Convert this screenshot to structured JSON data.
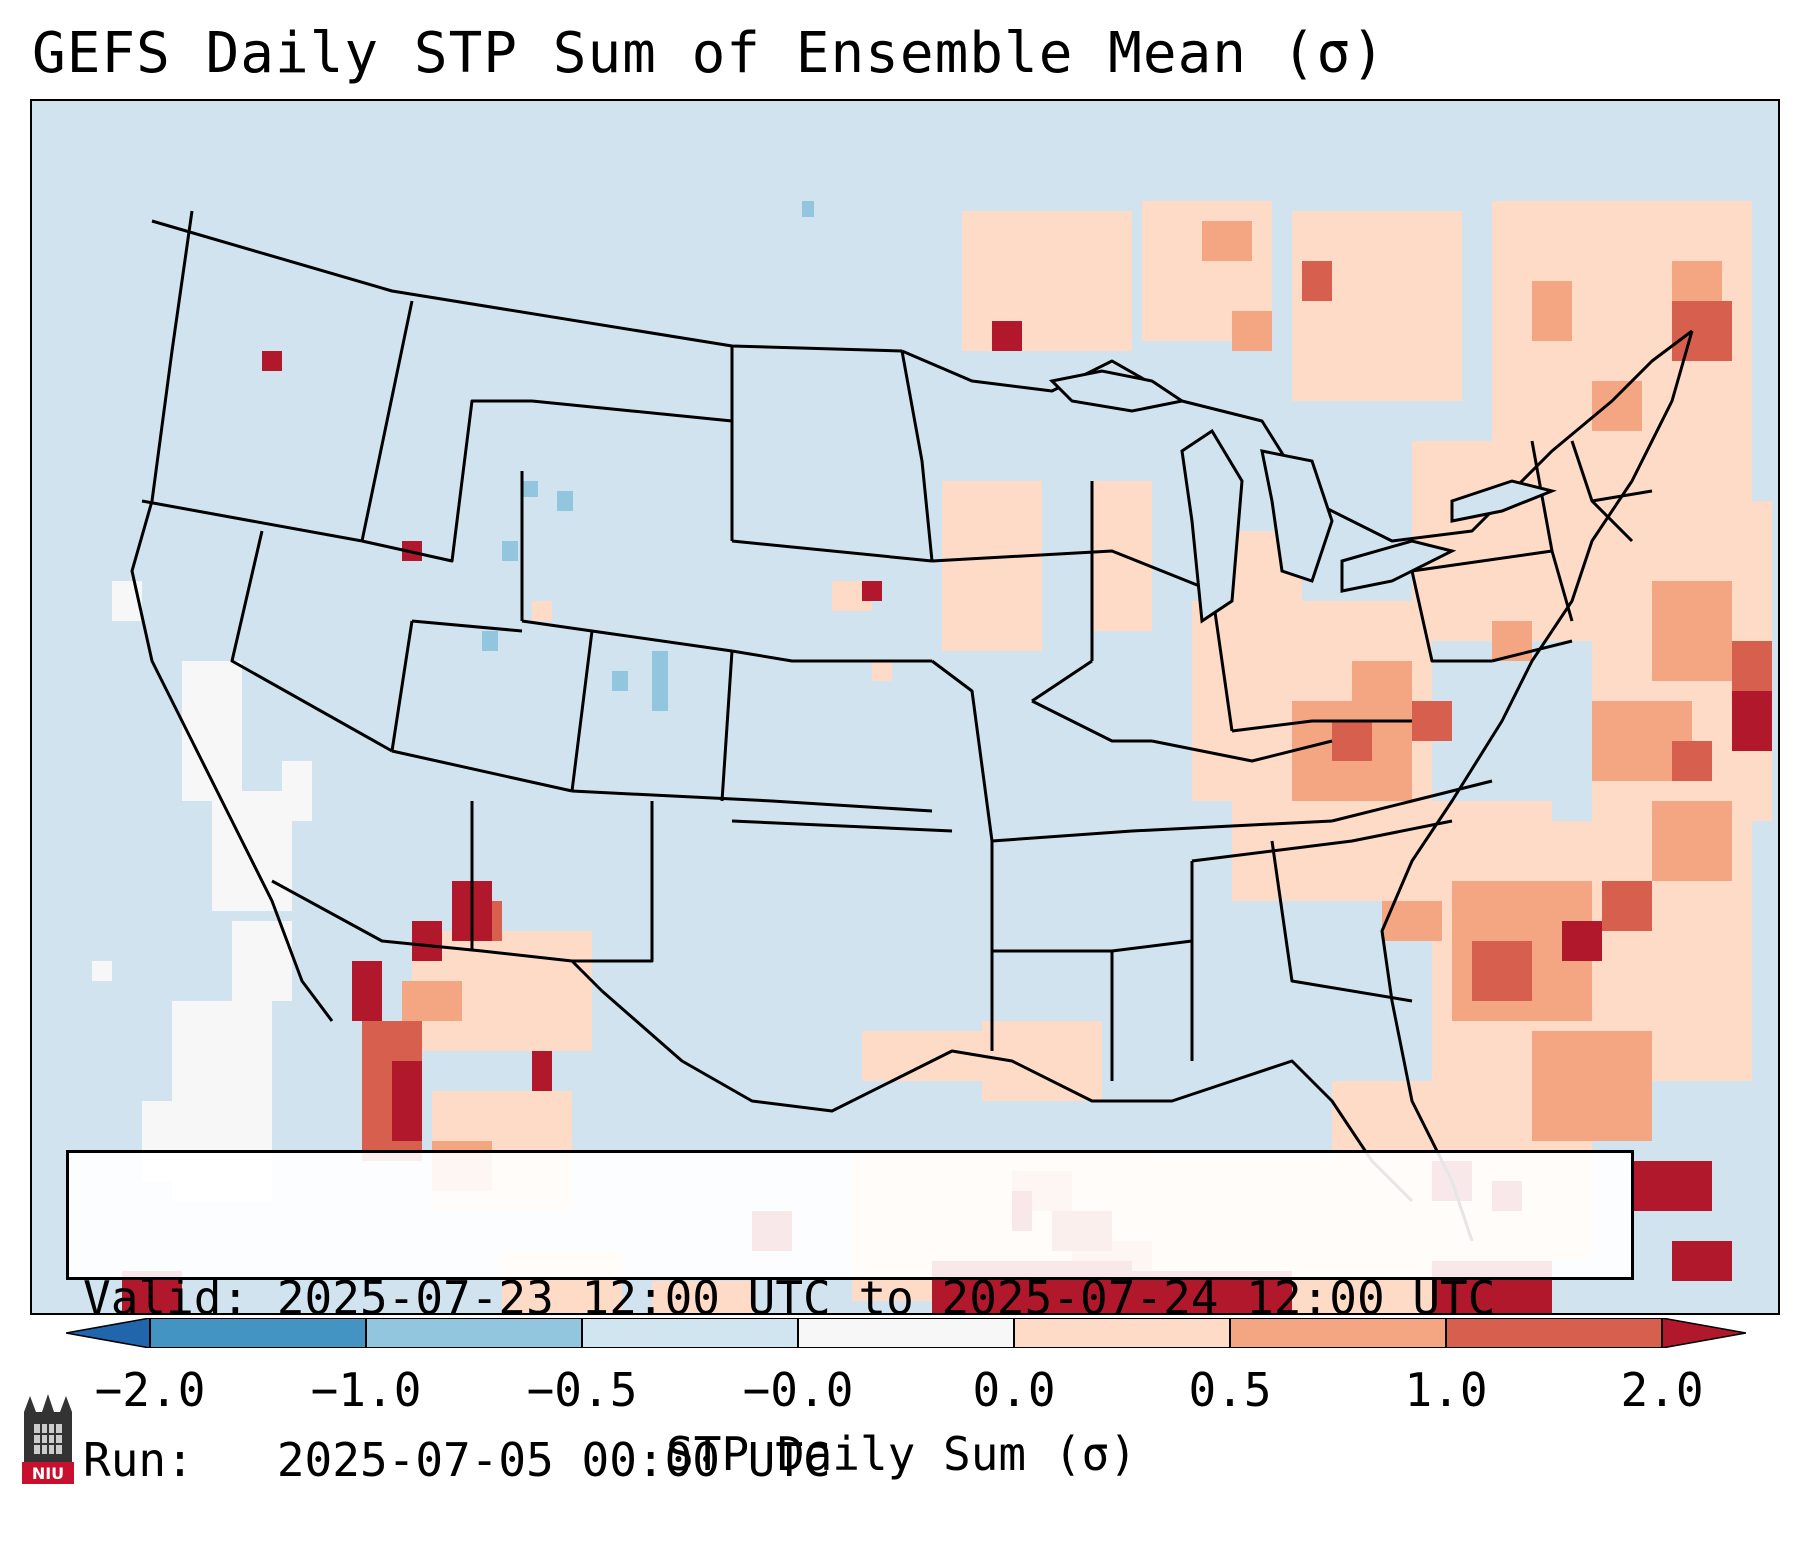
{
  "title": "GEFS Daily STP Sum of Ensemble Mean (σ)",
  "info": {
    "valid_line": "Valid: 2025-07-23 12:00 UTC to 2025-07-24 12:00 UTC",
    "run_line": "Run:   2025-07-05 00:00 UTC"
  },
  "colorbar": {
    "label": "STP Daily Sum (σ)",
    "ticks": [
      "−2.0",
      "−1.0",
      "−0.5",
      "−0.0",
      "0.0",
      "0.5",
      "1.0",
      "2.0"
    ],
    "colors": [
      "#2166ac",
      "#4393c3",
      "#92c5de",
      "#d1e5f0",
      "#f7f7f7",
      "#fddbc7",
      "#f4a582",
      "#d6604d",
      "#b2182b"
    ]
  },
  "logo": {
    "text": "NIU"
  },
  "map": {
    "ocean_color": "#d0e3ef",
    "region": "Contiguous United States"
  }
}
